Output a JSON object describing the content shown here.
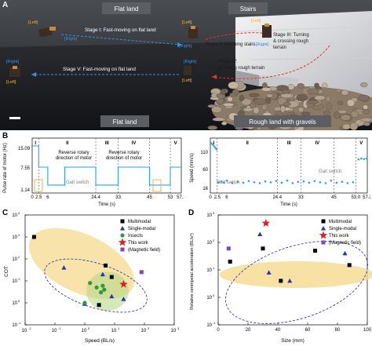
{
  "panelA": {
    "letter": "A",
    "tag_flat_top": "Flat land",
    "tag_stairs": "Stairs",
    "tag_flat_bottom": "Flat land",
    "tag_rough": "Rough land with gravels",
    "stage1": "Stage I: Fast-moving on flat land",
    "stage2": "Stage II: Climbing stairs",
    "stage3_l1": "Stage III: Turning",
    "stage3_l2": "& crossing rough",
    "stage3_l3": "terrain",
    "stage4_l1": "Stage IV:",
    "stage4_l2": "Crossing rough terrain",
    "stage5": "Stage V: Fast-moving on flat land",
    "left": "[Left]",
    "right": "[Right]"
  },
  "panelB": {
    "letter": "B",
    "left": {
      "ylabel": "Pulse rate of motor (Hz)",
      "xlabel": "Time (s)",
      "yticks": [
        "15.09",
        "7.55",
        "1.14"
      ],
      "xticks": [
        "0",
        "2.5",
        "6",
        "24.4",
        "33",
        "45",
        "53",
        "57.2"
      ],
      "stages": [
        "I",
        "II",
        "III",
        "IV",
        "V"
      ],
      "note1_l1": "Reverse rotary",
      "note1_l2": "direction of motor",
      "note2_l1": "Reverse rotary",
      "note2_l2": "direction of motor",
      "gait": "Gait switch"
    },
    "right": {
      "ylabel": "Speed (mm/s)",
      "xlabel": "Time (s)",
      "yticks": [
        "110",
        "60",
        "16"
      ],
      "xticks": [
        "0",
        "2.5",
        "6",
        "24.4",
        "33",
        "45",
        "53.0",
        "57.2"
      ],
      "stages": [
        "I",
        "II",
        "III",
        "IV",
        "V"
      ],
      "gait1": "Gait switch",
      "gait2": "Gait switch"
    }
  },
  "panelC": {
    "letter": "C",
    "ylabel": "COT",
    "xlabel": "Speed (BL/s)",
    "legend": [
      "Multimodal",
      "Single-modal",
      "Insects",
      "This work",
      "(Magnetic field)"
    ]
  },
  "panelD": {
    "letter": "D",
    "ylabel": "Relative centripetal acceleration (BL/s²)",
    "xlabel": "Size (mm)",
    "legend": [
      "Multimodal",
      "Single-modal",
      "This work",
      "(Magnetic field)"
    ]
  },
  "chart_data": [
    {
      "type": "line",
      "title": "",
      "xlabel": "Time (s)",
      "ylabel": "Pulse rate of motor (Hz)",
      "xlim": [
        0,
        57.2
      ],
      "ylim": [
        0,
        15.09
      ],
      "series": [
        {
          "x": [
            0,
            2.5,
            2.5,
            6,
            6,
            12.5,
            12.5,
            24.4,
            24.4,
            33,
            33,
            45,
            45,
            53,
            53,
            57.2
          ],
          "y": [
            15.09,
            15.09,
            7.55,
            7.55,
            1.14,
            1.14,
            7.55,
            7.55,
            1.14,
            1.14,
            7.55,
            7.55,
            1.14,
            1.14,
            7.55,
            7.55
          ]
        }
      ]
    },
    {
      "type": "scatter",
      "title": "",
      "xlabel": "Time (s)",
      "ylabel": "Speed (mm/s)",
      "xlim": [
        0,
        57.2
      ],
      "ylim": [
        0,
        115
      ],
      "series": [
        {
          "x": [
            0.3,
            0.8,
            1.3,
            1.8,
            2.2,
            3,
            4,
            5,
            6,
            8,
            10,
            12,
            14,
            16,
            18,
            20,
            22,
            24,
            26,
            28,
            30,
            32,
            34,
            36,
            38,
            40,
            42,
            44,
            46,
            48,
            50,
            52,
            54,
            55,
            56,
            57
          ],
          "y": [
            110,
            108,
            104,
            100,
            96,
            18,
            20,
            17,
            22,
            16,
            19,
            17,
            21,
            18,
            16,
            20,
            18,
            21,
            17,
            22,
            16,
            19,
            20,
            17,
            21,
            18,
            16,
            22,
            17,
            19,
            16,
            18,
            72,
            74,
            73,
            74
          ]
        }
      ]
    },
    {
      "type": "scatter",
      "title": "",
      "xlabel": "Speed (BL/s)",
      "ylabel": "COT",
      "series": [
        {
          "name": "Multimodal",
          "x": [
            0.02,
            3,
            5,
            8
          ],
          "y": [
            1000,
            0.8,
            50,
            15
          ]
        },
        {
          "name": "Single-modal",
          "x": [
            0.2,
            1,
            4,
            8,
            20
          ],
          "y": [
            40,
            0.9,
            20,
            2,
            1.5
          ]
        },
        {
          "name": "Insects",
          "x": [
            1.5,
            2.5,
            3.5,
            4,
            4.5,
            1
          ],
          "y": [
            8,
            5,
            3,
            6,
            4,
            1
          ]
        },
        {
          "name": "This work",
          "x": [
            20
          ],
          "y": [
            7
          ]
        },
        {
          "name": "(Magnetic field)",
          "x": [
            80
          ],
          "y": [
            25
          ]
        }
      ]
    },
    {
      "type": "scatter",
      "title": "",
      "xlabel": "Size (mm)",
      "ylabel": "Relative centripetal acceleration (BL/s²)",
      "series": [
        {
          "name": "Multimodal",
          "x": [
            8,
            30,
            42,
            65,
            88
          ],
          "y": [
            20,
            60,
            4,
            50,
            15
          ]
        },
        {
          "name": "Single-modal",
          "x": [
            28,
            34,
            48,
            85
          ],
          "y": [
            200,
            8,
            4,
            40
          ]
        },
        {
          "name": "This work",
          "x": [
            32
          ],
          "y": [
            500
          ]
        },
        {
          "name": "(Magnetic field)",
          "x": [
            7
          ],
          "y": [
            60
          ]
        }
      ]
    }
  ]
}
